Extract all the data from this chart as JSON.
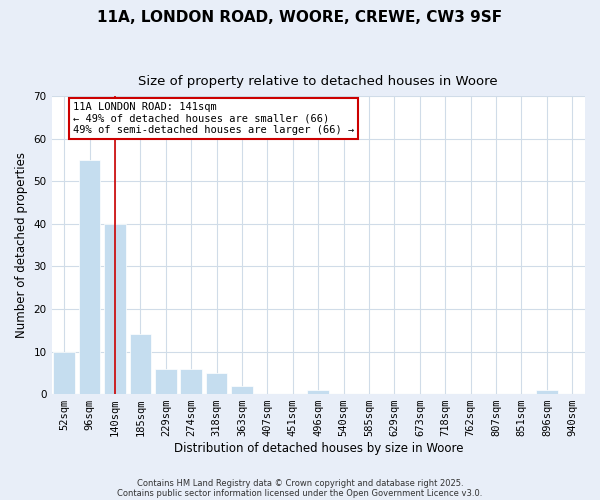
{
  "title1": "11A, LONDON ROAD, WOORE, CREWE, CW3 9SF",
  "title2": "Size of property relative to detached houses in Woore",
  "xlabel": "Distribution of detached houses by size in Woore",
  "ylabel": "Number of detached properties",
  "bar_labels": [
    "52sqm",
    "96sqm",
    "140sqm",
    "185sqm",
    "229sqm",
    "274sqm",
    "318sqm",
    "363sqm",
    "407sqm",
    "451sqm",
    "496sqm",
    "540sqm",
    "585sqm",
    "629sqm",
    "673sqm",
    "718sqm",
    "762sqm",
    "807sqm",
    "851sqm",
    "896sqm",
    "940sqm"
  ],
  "bar_values": [
    10,
    55,
    40,
    14,
    6,
    6,
    5,
    2,
    0,
    0,
    1,
    0,
    0,
    0,
    0,
    0,
    0,
    0,
    0,
    1,
    0
  ],
  "bar_color": "#c5ddef",
  "bar_edge_color": "#ffffff",
  "red_line_index": 2,
  "ylim": [
    0,
    70
  ],
  "yticks": [
    0,
    10,
    20,
    30,
    40,
    50,
    60,
    70
  ],
  "annotation_title": "11A LONDON ROAD: 141sqm",
  "annotation_line1": "← 49% of detached houses are smaller (66)",
  "annotation_line2": "49% of semi-detached houses are larger (66) →",
  "annotation_box_facecolor": "#ffffff",
  "annotation_box_edgecolor": "#cc0000",
  "footer1": "Contains HM Land Registry data © Crown copyright and database right 2025.",
  "footer2": "Contains public sector information licensed under the Open Government Licence v3.0.",
  "fig_facecolor": "#e8eef8",
  "plot_facecolor": "#ffffff",
  "grid_color": "#d0dce8",
  "title_fontsize": 11,
  "subtitle_fontsize": 9.5,
  "axis_label_fontsize": 8.5,
  "tick_fontsize": 7.5,
  "annotation_fontsize": 7.5,
  "footer_fontsize": 6
}
